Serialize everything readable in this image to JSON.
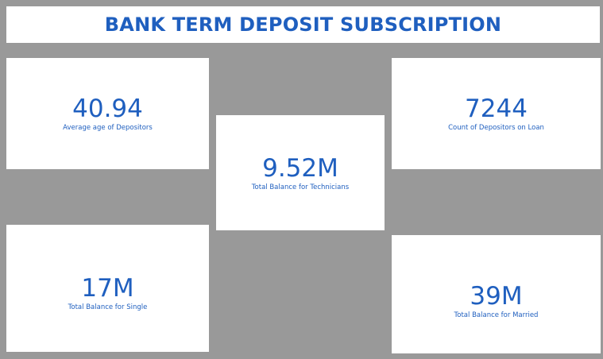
{
  "header": {
    "title": "BANK TERM DEPOSIT SUBSCRIPTION"
  },
  "cards": {
    "avg_age": {
      "value": "40.94",
      "label": "Average age of Depositors"
    },
    "technicians": {
      "value": "9.52M",
      "label": "Total Balance for Technicians"
    },
    "loan": {
      "value": "7244",
      "label": "Count of Depositors on Loan"
    },
    "single": {
      "value": "17M",
      "label": "Total Balance for Single"
    },
    "married": {
      "value": "39M",
      "label": "Total Balance for Married"
    }
  },
  "colors": {
    "background": "#999999",
    "card": "#ffffff",
    "accent": "#1f5fbf"
  }
}
